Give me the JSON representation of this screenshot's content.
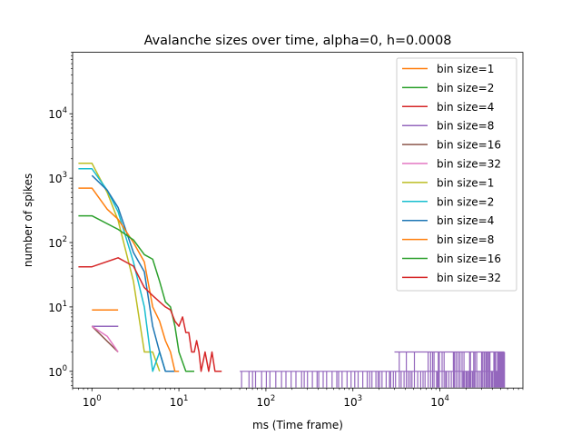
{
  "chart_data": {
    "type": "line",
    "title": "Avalanche sizes over time, alpha=0, h=0.0008",
    "xlabel": "ms (Time frame)",
    "ylabel": "number of spikes",
    "xscale": "log",
    "yscale": "log",
    "xlim": [
      0.6,
      90000
    ],
    "ylim": [
      0.55,
      90000
    ],
    "grid": false,
    "legend_position": "top-right",
    "x_ticks": [
      {
        "value": 1,
        "base": "10",
        "exp": "0"
      },
      {
        "value": 10,
        "base": "10",
        "exp": "1"
      },
      {
        "value": 100,
        "base": "10",
        "exp": "2"
      },
      {
        "value": 1000,
        "base": "10",
        "exp": "3"
      },
      {
        "value": 10000,
        "base": "10",
        "exp": "4"
      }
    ],
    "y_ticks": [
      {
        "value": 1,
        "base": "10",
        "exp": "0"
      },
      {
        "value": 10,
        "base": "10",
        "exp": "1"
      },
      {
        "value": 100,
        "base": "10",
        "exp": "2"
      },
      {
        "value": 1000,
        "base": "10",
        "exp": "3"
      },
      {
        "value": 10000,
        "base": "10",
        "exp": "4"
      }
    ],
    "series": [
      {
        "name": "bin size=1",
        "color": "#ff7f0e",
        "points": [
          [
            1,
            9
          ],
          [
            2,
            9
          ]
        ]
      },
      {
        "name": "bin size=2",
        "color": "#2ca02c",
        "points": [
          [
            1,
            5
          ],
          [
            2,
            5
          ]
        ]
      },
      {
        "name": "bin size=4",
        "color": "#d62728",
        "points": [
          [
            1,
            5
          ],
          [
            2,
            5
          ]
        ]
      },
      {
        "name": "bin size=8",
        "color": "#9467bd",
        "points": [
          [
            1,
            5
          ],
          [
            2,
            5
          ]
        ]
      },
      {
        "name": "bin size=16",
        "color": "#8c564b",
        "points": [
          [
            1,
            5
          ],
          [
            2,
            2
          ]
        ]
      },
      {
        "name": "bin size=32",
        "color": "#e377c2",
        "points": [
          [
            1,
            5
          ],
          [
            1.5,
            3.5
          ],
          [
            2,
            2
          ]
        ]
      },
      {
        "name": "bin size=1",
        "color": "#bcbd22",
        "points": [
          [
            0.7,
            1700
          ],
          [
            1,
            1700
          ],
          [
            1.5,
            600
          ],
          [
            2,
            220
          ],
          [
            3,
            25
          ],
          [
            4,
            2
          ],
          [
            5,
            2
          ],
          [
            6,
            1
          ]
        ]
      },
      {
        "name": "bin size=2",
        "color": "#17becf",
        "points": [
          [
            0.7,
            1400
          ],
          [
            1,
            1400
          ],
          [
            1.5,
            650
          ],
          [
            2,
            300
          ],
          [
            3,
            50
          ],
          [
            4,
            10
          ],
          [
            5,
            1
          ],
          [
            6,
            2
          ],
          [
            7,
            1
          ]
        ]
      },
      {
        "name": "bin size=4",
        "color": "#1f77b4",
        "points": [
          [
            1,
            1100
          ],
          [
            1.5,
            650
          ],
          [
            2,
            350
          ],
          [
            3,
            70
          ],
          [
            4,
            35
          ],
          [
            5,
            5
          ],
          [
            6,
            2
          ],
          [
            7,
            1
          ],
          [
            10,
            1
          ]
        ]
      },
      {
        "name": "bin size=8",
        "color": "#ff7f0e",
        "points": [
          [
            0.7,
            700
          ],
          [
            1,
            700
          ],
          [
            1.5,
            330
          ],
          [
            2,
            230
          ],
          [
            3,
            100
          ],
          [
            4,
            50
          ],
          [
            5,
            10
          ],
          [
            6,
            6
          ],
          [
            7,
            3
          ],
          [
            8,
            2
          ],
          [
            9,
            1
          ],
          [
            10,
            1
          ]
        ]
      },
      {
        "name": "bin size=16",
        "color": "#2ca02c",
        "points": [
          [
            0.7,
            260
          ],
          [
            1,
            260
          ],
          [
            2,
            160
          ],
          [
            3,
            110
          ],
          [
            4,
            65
          ],
          [
            5,
            55
          ],
          [
            6,
            25
          ],
          [
            7,
            12
          ],
          [
            8,
            10
          ],
          [
            9,
            5
          ],
          [
            10,
            2
          ],
          [
            12,
            1
          ],
          [
            15,
            1
          ]
        ]
      },
      {
        "name": "bin size=32",
        "color": "#d62728",
        "points": [
          [
            0.7,
            42
          ],
          [
            1,
            42
          ],
          [
            2,
            58
          ],
          [
            3,
            43
          ],
          [
            4,
            20
          ],
          [
            5,
            15
          ],
          [
            6,
            12
          ],
          [
            7,
            10
          ],
          [
            8,
            9
          ],
          [
            9,
            6
          ],
          [
            10,
            5
          ],
          [
            11,
            7
          ],
          [
            12,
            4
          ],
          [
            13,
            4
          ],
          [
            14,
            2
          ],
          [
            15,
            2
          ],
          [
            16,
            3
          ],
          [
            17,
            2
          ],
          [
            18,
            1
          ],
          [
            20,
            2
          ],
          [
            22,
            1
          ],
          [
            24,
            2
          ],
          [
            26,
            1
          ],
          [
            28,
            1
          ],
          [
            31,
            1
          ]
        ]
      }
    ]
  }
}
